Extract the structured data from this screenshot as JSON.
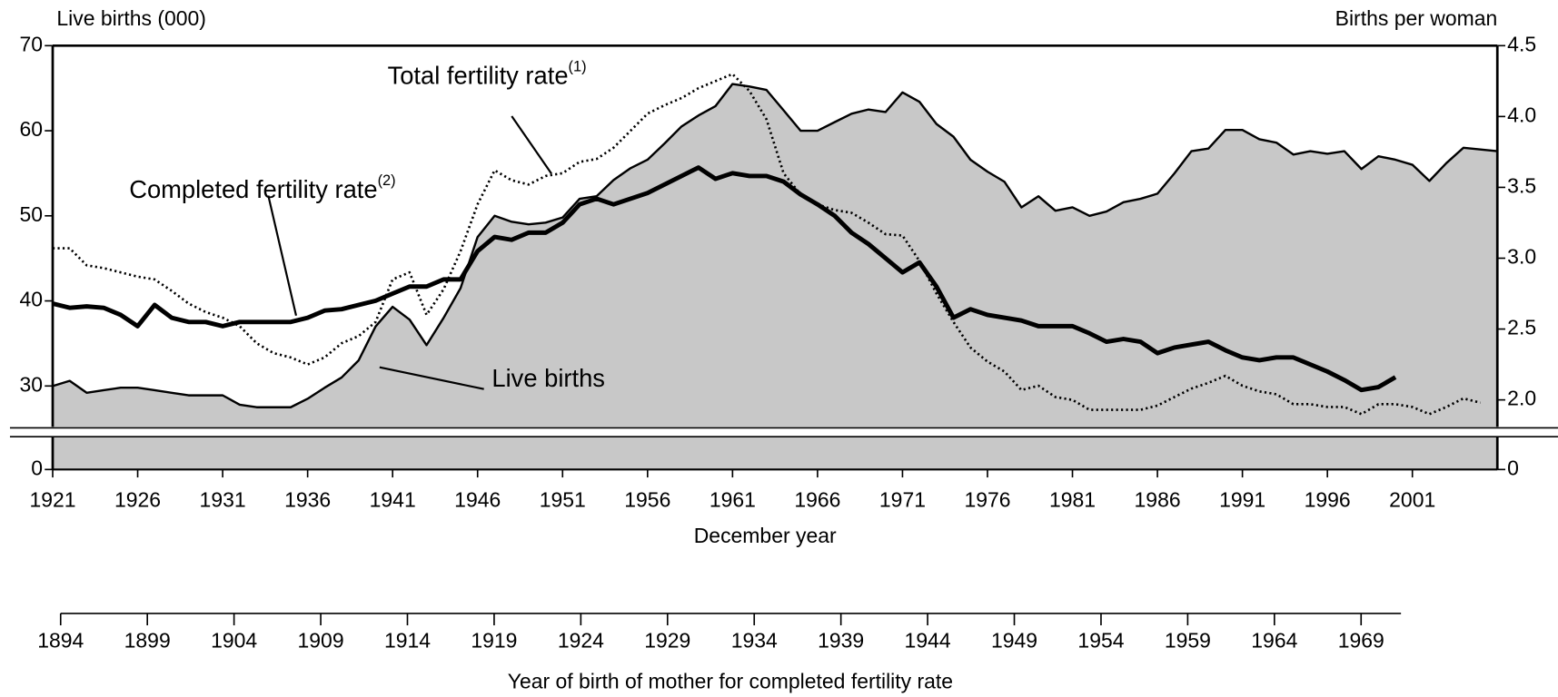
{
  "chart_data": {
    "type": "line",
    "y_axis_label": "Live births (000)",
    "y2_axis_label": "Births per woman",
    "x_axis_label": "December year",
    "x2_axis_label": "Year of birth of mother for completed fertility rate",
    "x": [
      1921,
      1922,
      1923,
      1924,
      1925,
      1926,
      1927,
      1928,
      1929,
      1930,
      1931,
      1932,
      1933,
      1934,
      1935,
      1936,
      1937,
      1938,
      1939,
      1940,
      1941,
      1942,
      1943,
      1944,
      1945,
      1946,
      1947,
      1948,
      1949,
      1950,
      1951,
      1952,
      1953,
      1954,
      1955,
      1956,
      1957,
      1958,
      1959,
      1960,
      1961,
      1962,
      1963,
      1964,
      1965,
      1966,
      1967,
      1968,
      1969,
      1970,
      1971,
      1972,
      1973,
      1974,
      1975,
      1976,
      1977,
      1978,
      1979,
      1980,
      1981,
      1982,
      1983,
      1984,
      1985,
      1986,
      1987,
      1988,
      1989,
      1990,
      1991,
      1992,
      1993,
      1994,
      1995,
      1996,
      1997,
      1998,
      1999,
      2000,
      2001,
      2002,
      2003,
      2004,
      2005,
      2006
    ],
    "series": [
      {
        "name": "Live births",
        "axis": "y",
        "style": "area",
        "color": "#000000",
        "fill": "#c8c8c8",
        "values": [
          30,
          30.6,
          29.2,
          29.5,
          29.8,
          29.8,
          29.5,
          29.2,
          28.9,
          28.9,
          28.9,
          27.8,
          27.5,
          27.5,
          27.5,
          28.5,
          29.8,
          31,
          33,
          37,
          39.3,
          37.8,
          34.8,
          38,
          41.5,
          47.5,
          50,
          49.3,
          49,
          49.2,
          49.8,
          52,
          52.3,
          54.2,
          55.6,
          56.6,
          58.5,
          60.5,
          61.8,
          62.9,
          65.5,
          65.2,
          64.8,
          62.4,
          60,
          60,
          61,
          62,
          62.5,
          62.2,
          64.5,
          63.4,
          60.8,
          59.3,
          56.6,
          55.2,
          54,
          51,
          52.3,
          50.6,
          51,
          50,
          50.5,
          51.6,
          52,
          52.6,
          55,
          57.6,
          57.9,
          60.1,
          60.1,
          59,
          58.6,
          57.2,
          57.6,
          57.3,
          57.6,
          55.5,
          57,
          56.6,
          56,
          54.1,
          56.2,
          58,
          57.8,
          57.6
        ]
      },
      {
        "name": "Total fertility rate",
        "note": "(1)",
        "axis": "y2",
        "style": "dotted",
        "color": "#000000",
        "values": [
          3.07,
          3.07,
          2.95,
          2.93,
          2.9,
          2.87,
          2.85,
          2.77,
          2.68,
          2.62,
          2.58,
          2.52,
          2.4,
          2.33,
          2.3,
          2.25,
          2.3,
          2.4,
          2.45,
          2.55,
          2.85,
          2.9,
          2.6,
          2.78,
          3.05,
          3.38,
          3.62,
          3.55,
          3.52,
          3.58,
          3.6,
          3.68,
          3.7,
          3.78,
          3.9,
          4.02,
          4.08,
          4.13,
          4.2,
          4.25,
          4.3,
          4.18,
          3.98,
          3.6,
          3.45,
          3.38,
          3.34,
          3.32,
          3.25,
          3.17,
          3.16,
          2.98,
          2.75,
          2.55,
          2.37,
          2.27,
          2.2,
          2.07,
          2.1,
          2.02,
          2,
          1.93,
          1.93,
          1.93,
          1.93,
          1.96,
          2.02,
          2.08,
          2.12,
          2.17,
          2.1,
          2.06,
          2.04,
          1.97,
          1.97,
          1.95,
          1.95,
          1.9,
          1.97,
          1.97,
          1.95,
          1.9,
          1.95,
          2.01,
          1.98,
          null
        ]
      },
      {
        "name": "Completed fertility rate",
        "note": "(2)",
        "axis": "y2",
        "style": "thick",
        "color": "#000000",
        "values": [
          2.68,
          2.65,
          2.66,
          2.65,
          2.6,
          2.52,
          2.67,
          2.58,
          2.55,
          2.55,
          2.52,
          2.55,
          2.55,
          2.55,
          2.55,
          2.58,
          2.63,
          2.64,
          2.67,
          2.7,
          2.75,
          2.8,
          2.8,
          2.85,
          2.85,
          3.05,
          3.15,
          3.13,
          3.18,
          3.18,
          3.25,
          3.38,
          3.42,
          3.38,
          3.42,
          3.46,
          3.52,
          3.58,
          3.64,
          3.56,
          3.6,
          3.58,
          3.58,
          3.54,
          3.45,
          3.38,
          3.3,
          3.18,
          3.1,
          3.0,
          2.9,
          2.97,
          2.8,
          2.58,
          2.64,
          2.6,
          2.58,
          2.56,
          2.52,
          2.52,
          2.52,
          2.47,
          2.41,
          2.43,
          2.41,
          2.33,
          2.37,
          2.39,
          2.41,
          2.35,
          2.3,
          2.28,
          2.3,
          2.3,
          2.25,
          2.2,
          2.14,
          2.07,
          2.09,
          2.16,
          null,
          null,
          null,
          null,
          null,
          null
        ]
      }
    ],
    "xlim": [
      1921,
      2006
    ],
    "xticks": [
      1921,
      1926,
      1931,
      1936,
      1941,
      1946,
      1951,
      1956,
      1961,
      1966,
      1971,
      1976,
      1981,
      1986,
      1991,
      1996,
      2001
    ],
    "x2lim": [
      1894,
      1971.3
    ],
    "x2ticks": [
      1894,
      1899,
      1904,
      1909,
      1914,
      1919,
      1924,
      1929,
      1934,
      1939,
      1944,
      1949,
      1954,
      1959,
      1964,
      1969
    ],
    "ylim": [
      25.2,
      70
    ],
    "yticks": [
      0,
      30,
      40,
      50,
      60,
      70
    ],
    "y2lim": [
      1.81,
      4.5
    ],
    "y2ticks": [
      0,
      {
        "value": 2,
        "label": "2.0"
      },
      2.5,
      {
        "value": 3,
        "label": "3.0"
      },
      3.5,
      {
        "value": 4,
        "label": "4.0"
      },
      4.5
    ],
    "axis_break": true
  }
}
